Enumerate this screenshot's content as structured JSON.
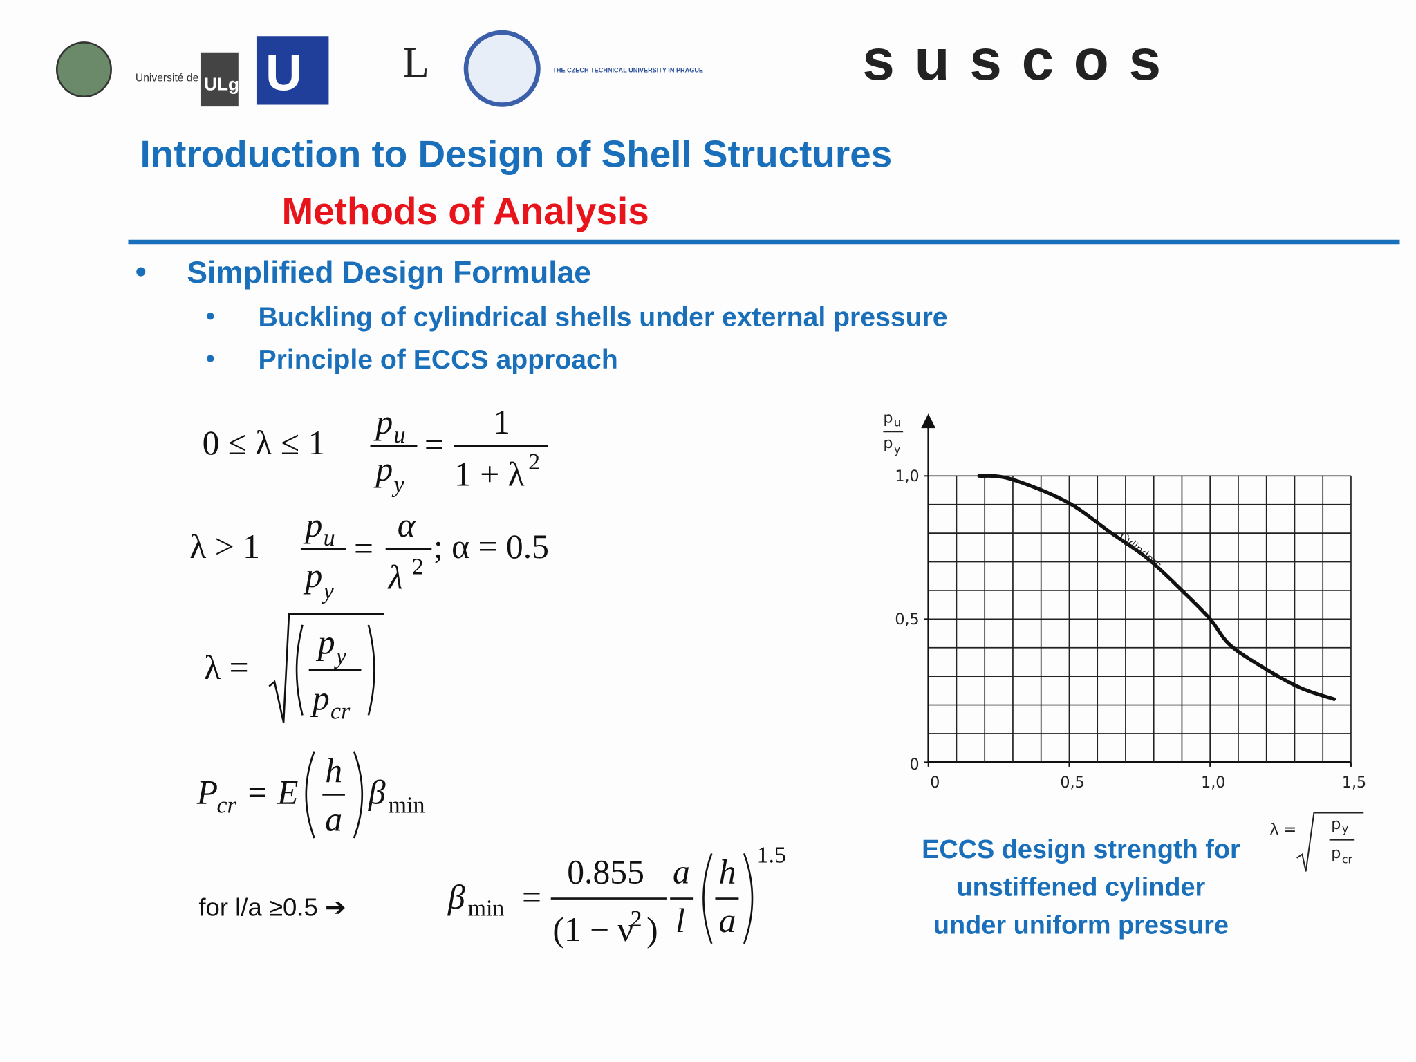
{
  "header": {
    "logos": [
      "Université de Liège",
      "ULg",
      "U",
      "L",
      "THE CZECH TECHNICAL UNIVERSITY IN PRAGUE",
      "suscos"
    ],
    "title": "Introduction to Design of Shell Structures",
    "subtitle": "Methods of Analysis"
  },
  "bullets": {
    "main": "Simplified Design Formulae",
    "sub": [
      "Buckling of cylindrical shells under external pressure",
      "Principle of ECCS approach"
    ]
  },
  "formulas": [
    {
      "condition": "0 ≤ λ ≤ 1",
      "lhs_num": "p",
      "lhs_num_sub": "u",
      "lhs_den": "p",
      "lhs_den_sub": "y",
      "eq": "=",
      "rhs_num": "1",
      "rhs_den": "1 + λ",
      "rhs_den_sup": "2"
    },
    {
      "condition": "λ > 1",
      "lhs_num": "p",
      "lhs_num_sub": "u",
      "lhs_den": "p",
      "lhs_den_sub": "y",
      "eq": "=",
      "rhs_num": "α",
      "rhs_den": "λ",
      "rhs_den_sup": "2",
      "tail": "; α = 0.5"
    },
    {
      "lhs": "λ =",
      "num": "p",
      "num_sub": "y",
      "den": "p",
      "den_sub": "cr"
    },
    {
      "lhs": "P",
      "lhs_sub": "cr",
      "eq": "= E",
      "num": "h",
      "den": "a",
      "tail": "β",
      "tail_sub": "min"
    },
    {
      "condition": "for l/a ≥0.5  ➔",
      "lhs": "β",
      "lhs_sub": "min",
      "eq": "=",
      "num": "0.855",
      "den": "(1 − ν",
      "den_sup": "2",
      "den_close": ")",
      "f2_num": "a",
      "f2_den": "l",
      "f3_num": "h",
      "f3_den": "a",
      "exp": "1.5"
    }
  ],
  "chart_data": {
    "type": "line",
    "y_label": {
      "num": "p",
      "num_sub": "u",
      "den": "p",
      "den_sub": "y"
    },
    "x_label": {
      "lhs": "λ =",
      "num": "p",
      "num_sub": "y",
      "den": "p",
      "den_sub": "cr"
    },
    "x": [
      0.18,
      0.29,
      0.49,
      0.65,
      0.78,
      0.9,
      1.0,
      1.07,
      1.19,
      1.32,
      1.44
    ],
    "series": [
      {
        "name": "Cylinders",
        "color": "#111111",
        "values": [
          1.0,
          0.99,
          0.91,
          0.8,
          0.71,
          0.6,
          0.5,
          0.41,
          0.33,
          0.26,
          0.22
        ]
      }
    ],
    "xlim": [
      0,
      1.5
    ],
    "ylim": [
      0,
      1
    ],
    "xticks": [
      0,
      {
        "value": 0.5,
        "label": "0,5"
      },
      {
        "value": 1,
        "label": "1,0"
      },
      {
        "value": 1.5,
        "label": "1,5"
      }
    ],
    "yticks": [
      0,
      {
        "value": 0.5,
        "label": "0,5"
      },
      {
        "value": 1,
        "label": "1,0"
      }
    ],
    "xgrid": [
      0.1,
      0.2,
      0.3,
      0.4,
      0.5,
      0.6,
      0.7,
      0.8,
      0.9,
      1.0,
      1.1,
      1.2,
      1.3,
      1.4,
      1.5
    ],
    "ygrid": [
      0.1,
      0.2,
      0.3,
      0.4,
      0.5,
      0.6,
      0.7,
      0.8,
      0.9,
      1.0
    ],
    "caption": [
      "ECCS design strength for",
      "unstiffened cylinder",
      "under uniform pressure"
    ]
  }
}
